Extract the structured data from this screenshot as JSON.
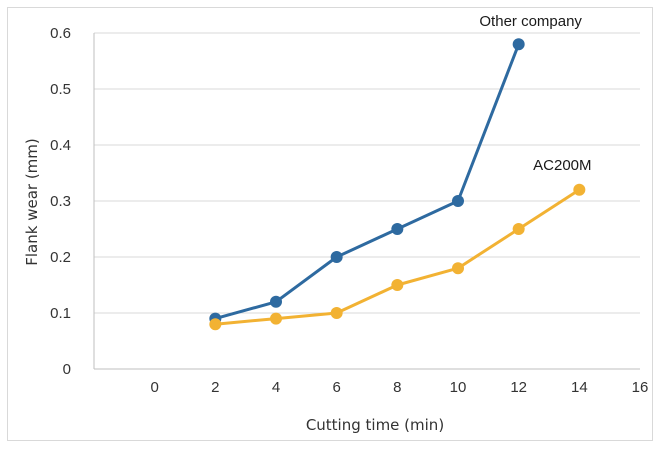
{
  "chart_data": {
    "type": "line",
    "xlabel": "Cutting time (min)",
    "ylabel": "Flank wear (mm)",
    "xlim": [
      -2,
      16
    ],
    "ylim": [
      0,
      0.6
    ],
    "x_ticks": [
      "0",
      "2",
      "4",
      "6",
      "8",
      "10",
      "12",
      "14",
      "16"
    ],
    "y_ticks": [
      "0",
      "0.1",
      "0.2",
      "0.3",
      "0.4",
      "0.5",
      "0.6"
    ],
    "grid": "horizontal",
    "legend": "inline labels",
    "series": [
      {
        "name": "Other company",
        "color": "#2e6aa0",
        "x": [
          2,
          4,
          6,
          8,
          10,
          12
        ],
        "y": [
          0.09,
          0.12,
          0.2,
          0.25,
          0.3,
          0.58
        ]
      },
      {
        "name": "AC200M",
        "color": "#f2b233",
        "x": [
          2,
          4,
          6,
          8,
          10,
          12,
          14
        ],
        "y": [
          0.08,
          0.09,
          0.1,
          0.15,
          0.18,
          0.25,
          0.32
        ]
      }
    ]
  }
}
